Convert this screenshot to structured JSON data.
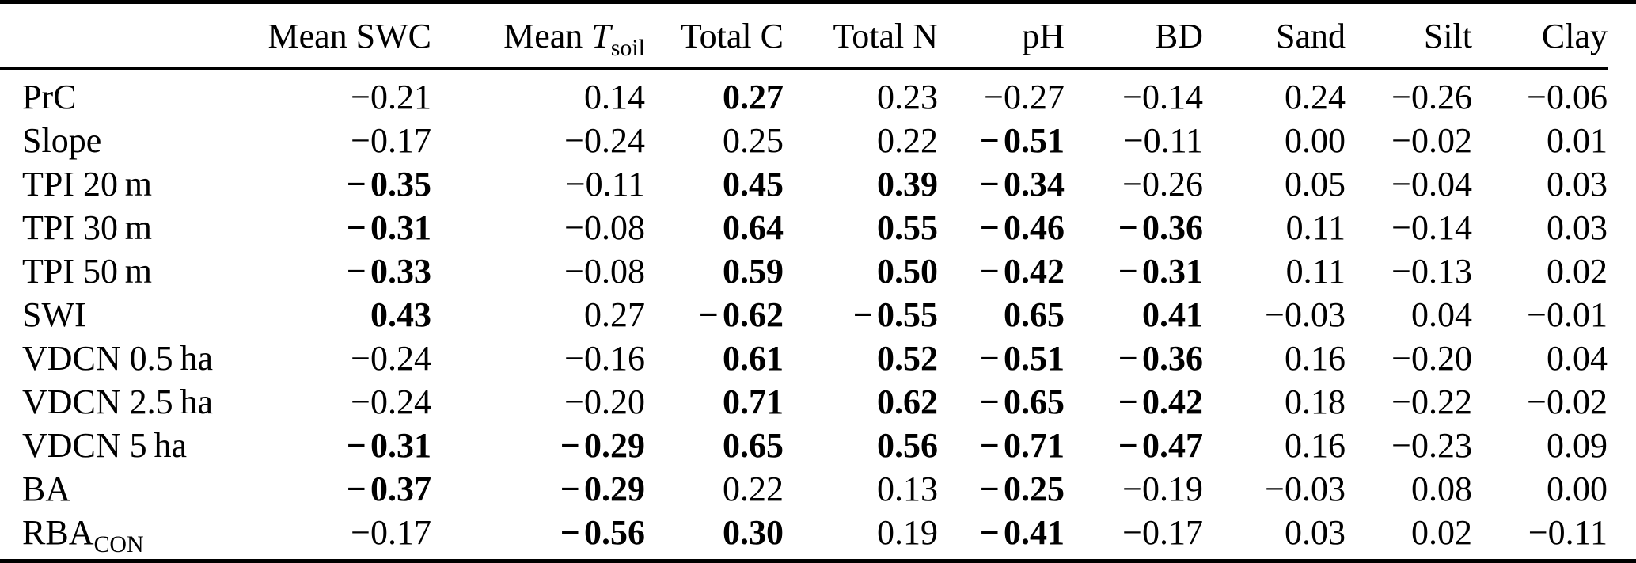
{
  "table": {
    "corner": "",
    "columns": [
      {
        "id": "mean-swc",
        "parts": [
          {
            "t": "Mean SWC"
          }
        ]
      },
      {
        "id": "mean-tsoil",
        "parts": [
          {
            "t": "Mean "
          },
          {
            "t": "T",
            "i": true
          },
          {
            "t": "soil",
            "sub": true
          }
        ]
      },
      {
        "id": "total-c",
        "parts": [
          {
            "t": "Total C"
          }
        ]
      },
      {
        "id": "total-n",
        "parts": [
          {
            "t": "Total N"
          }
        ]
      },
      {
        "id": "ph",
        "parts": [
          {
            "t": "pH"
          }
        ]
      },
      {
        "id": "bd",
        "parts": [
          {
            "t": "BD"
          }
        ]
      },
      {
        "id": "sand",
        "parts": [
          {
            "t": "Sand"
          }
        ]
      },
      {
        "id": "silt",
        "parts": [
          {
            "t": "Silt"
          }
        ]
      },
      {
        "id": "clay",
        "parts": [
          {
            "t": "Clay"
          }
        ]
      }
    ],
    "rows": [
      {
        "id": "prc",
        "label": [
          {
            "t": "PrC"
          }
        ],
        "cells": [
          {
            "v": "−0.21"
          },
          {
            "v": "0.14"
          },
          {
            "v": "0.27",
            "b": true
          },
          {
            "v": "0.23"
          },
          {
            "v": "−0.27"
          },
          {
            "v": "−0.14"
          },
          {
            "v": "0.24"
          },
          {
            "v": "−0.26"
          },
          {
            "v": "−0.06"
          }
        ]
      },
      {
        "id": "slope",
        "label": [
          {
            "t": "Slope"
          }
        ],
        "cells": [
          {
            "v": "−0.17"
          },
          {
            "v": "−0.24"
          },
          {
            "v": "0.25"
          },
          {
            "v": "0.22"
          },
          {
            "v": "−0.51",
            "b": true
          },
          {
            "v": "−0.11"
          },
          {
            "v": "0.00"
          },
          {
            "v": "−0.02"
          },
          {
            "v": "0.01"
          }
        ]
      },
      {
        "id": "tpi-20m",
        "label": [
          {
            "t": "TPI 20 m"
          }
        ],
        "cells": [
          {
            "v": "−0.35",
            "b": true
          },
          {
            "v": "−0.11"
          },
          {
            "v": "0.45",
            "b": true
          },
          {
            "v": "0.39",
            "b": true
          },
          {
            "v": "−0.34",
            "b": true
          },
          {
            "v": "−0.26"
          },
          {
            "v": "0.05"
          },
          {
            "v": "−0.04"
          },
          {
            "v": "0.03"
          }
        ]
      },
      {
        "id": "tpi-30m",
        "label": [
          {
            "t": "TPI 30 m"
          }
        ],
        "cells": [
          {
            "v": "−0.31",
            "b": true
          },
          {
            "v": "−0.08"
          },
          {
            "v": "0.64",
            "b": true
          },
          {
            "v": "0.55",
            "b": true
          },
          {
            "v": "−0.46",
            "b": true
          },
          {
            "v": "−0.36",
            "b": true
          },
          {
            "v": "0.11"
          },
          {
            "v": "−0.14"
          },
          {
            "v": "0.03"
          }
        ]
      },
      {
        "id": "tpi-50m",
        "label": [
          {
            "t": "TPI 50 m"
          }
        ],
        "cells": [
          {
            "v": "−0.33",
            "b": true
          },
          {
            "v": "−0.08"
          },
          {
            "v": "0.59",
            "b": true
          },
          {
            "v": "0.50",
            "b": true
          },
          {
            "v": "−0.42",
            "b": true
          },
          {
            "v": "−0.31",
            "b": true
          },
          {
            "v": "0.11"
          },
          {
            "v": "−0.13"
          },
          {
            "v": "0.02"
          }
        ]
      },
      {
        "id": "swi",
        "label": [
          {
            "t": "SWI"
          }
        ],
        "cells": [
          {
            "v": "0.43",
            "b": true
          },
          {
            "v": "0.27"
          },
          {
            "v": "−0.62",
            "b": true
          },
          {
            "v": "−0.55",
            "b": true
          },
          {
            "v": "0.65",
            "b": true
          },
          {
            "v": "0.41",
            "b": true
          },
          {
            "v": "−0.03"
          },
          {
            "v": "0.04"
          },
          {
            "v": "−0.01"
          }
        ]
      },
      {
        "id": "vdcn-05ha",
        "label": [
          {
            "t": "VDCN 0.5 ha"
          }
        ],
        "cells": [
          {
            "v": "−0.24"
          },
          {
            "v": "−0.16"
          },
          {
            "v": "0.61",
            "b": true
          },
          {
            "v": "0.52",
            "b": true
          },
          {
            "v": "−0.51",
            "b": true
          },
          {
            "v": "−0.36",
            "b": true
          },
          {
            "v": "0.16"
          },
          {
            "v": "−0.20"
          },
          {
            "v": "0.04"
          }
        ]
      },
      {
        "id": "vdcn-25ha",
        "label": [
          {
            "t": "VDCN 2.5 ha"
          }
        ],
        "cells": [
          {
            "v": "−0.24"
          },
          {
            "v": "−0.20"
          },
          {
            "v": "0.71",
            "b": true
          },
          {
            "v": "0.62",
            "b": true
          },
          {
            "v": "−0.65",
            "b": true
          },
          {
            "v": "−0.42",
            "b": true
          },
          {
            "v": "0.18"
          },
          {
            "v": "−0.22"
          },
          {
            "v": "−0.02"
          }
        ]
      },
      {
        "id": "vdcn-5ha",
        "label": [
          {
            "t": "VDCN 5 ha"
          }
        ],
        "cells": [
          {
            "v": "−0.31",
            "b": true
          },
          {
            "v": "−0.29",
            "b": true
          },
          {
            "v": "0.65",
            "b": true
          },
          {
            "v": "0.56",
            "b": true
          },
          {
            "v": "−0.71",
            "b": true
          },
          {
            "v": "−0.47",
            "b": true
          },
          {
            "v": "0.16"
          },
          {
            "v": "−0.23"
          },
          {
            "v": "0.09"
          }
        ]
      },
      {
        "id": "ba",
        "label": [
          {
            "t": "BA"
          }
        ],
        "cells": [
          {
            "v": "−0.37",
            "b": true
          },
          {
            "v": "−0.29",
            "b": true
          },
          {
            "v": "0.22"
          },
          {
            "v": "0.13"
          },
          {
            "v": "−0.25",
            "b": true
          },
          {
            "v": "−0.19"
          },
          {
            "v": "−0.03"
          },
          {
            "v": "0.08"
          },
          {
            "v": "0.00"
          }
        ]
      },
      {
        "id": "rba-con",
        "label": [
          {
            "t": "RBA"
          },
          {
            "t": "CON",
            "sub": true
          }
        ],
        "cells": [
          {
            "v": "−0.17"
          },
          {
            "v": "−0.56",
            "b": true
          },
          {
            "v": "0.30",
            "b": true
          },
          {
            "v": "0.19"
          },
          {
            "v": "−0.41",
            "b": true
          },
          {
            "v": "−0.17"
          },
          {
            "v": "0.03"
          },
          {
            "v": "0.02"
          },
          {
            "v": "−0.11"
          }
        ]
      }
    ]
  }
}
